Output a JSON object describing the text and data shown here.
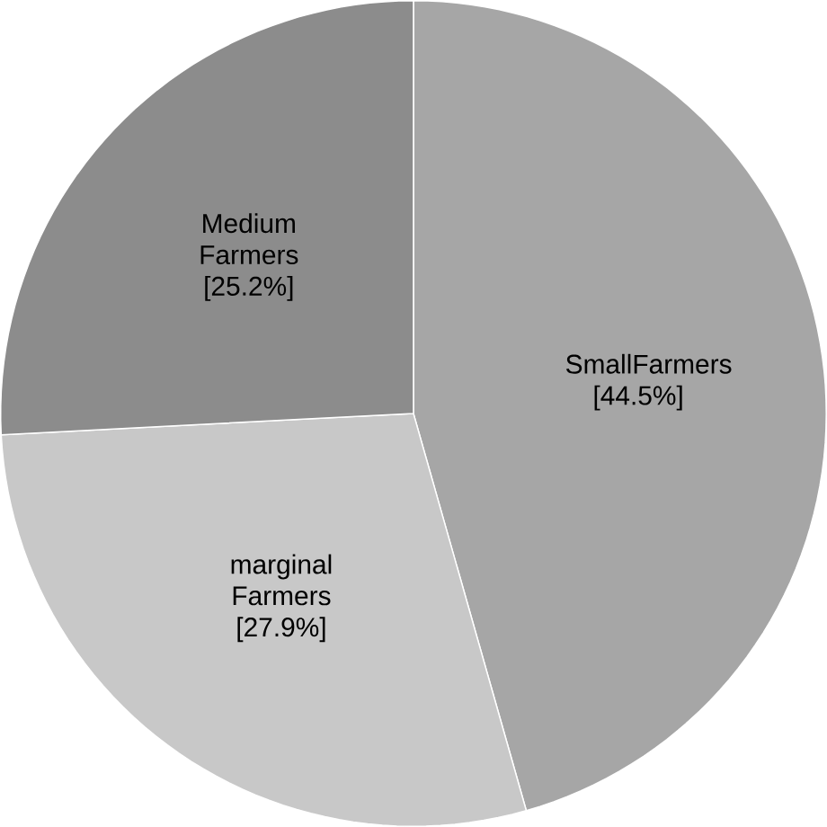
{
  "chart_data": {
    "type": "pie",
    "categories": [
      "SmallFarmers",
      "marginal Farmers",
      "Medium Farmers"
    ],
    "values": [
      44.5,
      27.9,
      25.2
    ],
    "value_labels": [
      "[44.5%]",
      "[27.9%]",
      "[25.2%]"
    ],
    "colors": [
      "#a6a6a6",
      "#c8c8c8",
      "#8c8c8c"
    ]
  }
}
